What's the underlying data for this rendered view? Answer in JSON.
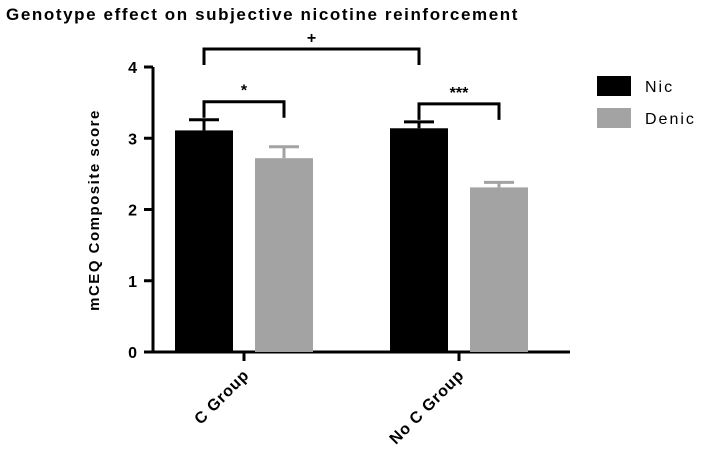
{
  "chart_data": {
    "type": "bar",
    "title": "Genotype effect on subjective nicotine reinforcement",
    "ylabel": "mCEQ Composite score",
    "xlabel": "",
    "ylim": [
      0,
      4
    ],
    "yticks": [
      0,
      1,
      2,
      3,
      4
    ],
    "categories": [
      "C Group",
      "No C Group"
    ],
    "series": [
      {
        "name": "Nic",
        "color": "#000000",
        "values": [
          3.11,
          3.14
        ],
        "errors": [
          0.15,
          0.09
        ]
      },
      {
        "name": "Denic",
        "color": "#a3a3a3",
        "values": [
          2.72,
          2.31
        ],
        "errors": [
          0.16,
          0.07
        ]
      }
    ],
    "legend_position": "top-right",
    "grid": false,
    "annotations": [
      {
        "label": "*",
        "type": "within",
        "category": 0
      },
      {
        "label": "***",
        "type": "within",
        "category": 1
      },
      {
        "label": "+",
        "type": "between",
        "from_category": 0,
        "to_category": 1,
        "series": "Nic"
      }
    ]
  }
}
